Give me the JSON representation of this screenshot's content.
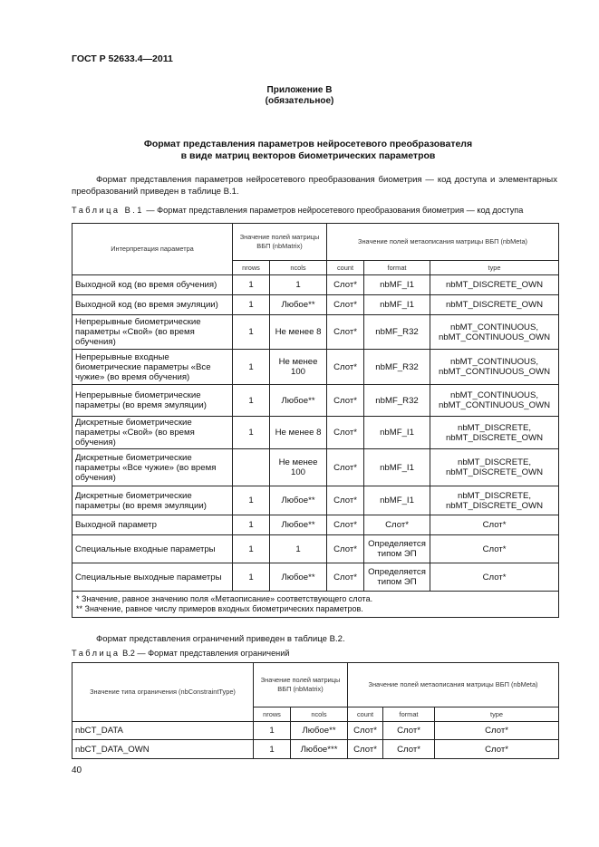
{
  "header": "ГОСТ Р 52633.4—2011",
  "appendix": {
    "title": "Приложение В",
    "note": "(обязательное)"
  },
  "section_title": [
    "Формат представления параметров нейросетевого преобразователя",
    "в виде матриц векторов биометрических параметров"
  ],
  "para1": "Формат представления параметров нейросетевого преобразования биометрия — код доступа и элементарных преобразований приведен в таблице В.1.",
  "table1": {
    "caption_label": "Таблица В.1",
    "caption_text": " — Формат представления параметров нейросетевого преобразования биометрия — код доступа",
    "head": {
      "param": "Интерпретация параметра",
      "matrix": "Значение полей матрицы ВБП (nbMatrix)",
      "meta": "Значение полей метаописания матрицы ВБП (nbMeta)",
      "sub": [
        "nrows",
        "ncols",
        "count",
        "format",
        "type"
      ]
    },
    "rows": [
      [
        "Выходной код (во время обучения)",
        "1",
        "1",
        "Слот*",
        "nbMF_I1",
        "nbMT_DISCRETE_OWN"
      ],
      [
        "Выходной код (во время эмуляции)",
        "1",
        "Любое**",
        "Слот*",
        "nbMF_I1",
        "nbMT_DISCRETE_OWN"
      ],
      [
        "Непрерывные биометрические параметры «Свой» (во время обучения)",
        "1",
        "Не менее 8",
        "Слот*",
        "nbMF_R32",
        "nbMT_CONTINUOUS, nbMT_CONTINUOUS_OWN"
      ],
      [
        "Непрерывные входные биометрические параметры «Все чужие» (во время обучения)",
        "1",
        "Не менее 100",
        "Слот*",
        "nbMF_R32",
        "nbMT_CONTINUOUS, nbMT_CONTINUOUS_OWN"
      ],
      [
        "Непрерывные биометрические параметры (во время эмуляции)",
        "1",
        "Любое**",
        "Слот*",
        "nbMF_R32",
        "nbMT_CONTINUOUS, nbMT_CONTINUOUS_OWN"
      ],
      [
        "Дискретные биометрические параметры «Свой» (во время обучения)",
        "1",
        "Не менее 8",
        "Слот*",
        "nbMF_I1",
        "nbMT_DISCRETE, nbMT_DISCRETE_OWN"
      ],
      [
        "Дискретные биометрические параметры «Все чужие» (во время обучения)",
        "",
        "Не менее 100",
        "Слот*",
        "nbMF_I1",
        "nbMT_DISCRETE, nbMT_DISCRETE_OWN"
      ],
      [
        "Дискретные биометрические параметры (во время эмуляции)",
        "1",
        "Любое**",
        "Слот*",
        "nbMF_I1",
        "nbMT_DISCRETE, nbMT_DISCRETE_OWN"
      ],
      [
        "Выходной параметр",
        "1",
        "Любое**",
        "Слот*",
        "Слот*",
        "Слот*"
      ],
      [
        "Специальные входные параметры",
        "1",
        "1",
        "Слот*",
        "Определяется типом ЭП",
        "Слот*"
      ],
      [
        "Специальные выходные параметры",
        "1",
        "Любое**",
        "Слот*",
        "Определяется типом ЭП",
        "Слот*"
      ]
    ],
    "footnotes": [
      "* Значение, равное значению поля «Метаописание» соответствующего слота.",
      "** Значение, равное числу примеров входных биометрических параметров."
    ]
  },
  "para2": "Формат представления ограничений приведен в таблице В.2.",
  "table2": {
    "caption_label": "Таблица",
    "caption_text": " В.2 — Формат представления ограничений",
    "head": {
      "param": "Значение типа ограничения (nbConstraintType)",
      "matrix": "Значение полей матрицы ВБП (nbMatrix)",
      "meta": "Значение полей метаописания матрицы ВБП (nbMeta)",
      "sub": [
        "nrows",
        "ncols",
        "count",
        "format",
        "type"
      ]
    },
    "rows": [
      [
        "nbCT_DATA",
        "1",
        "Любое**",
        "Слот*",
        "Слот*",
        "Слот*"
      ],
      [
        "nbCT_DATA_OWN",
        "1",
        "Любое***",
        "Слот*",
        "Слот*",
        "Слот*"
      ]
    ]
  },
  "page_number": "40"
}
